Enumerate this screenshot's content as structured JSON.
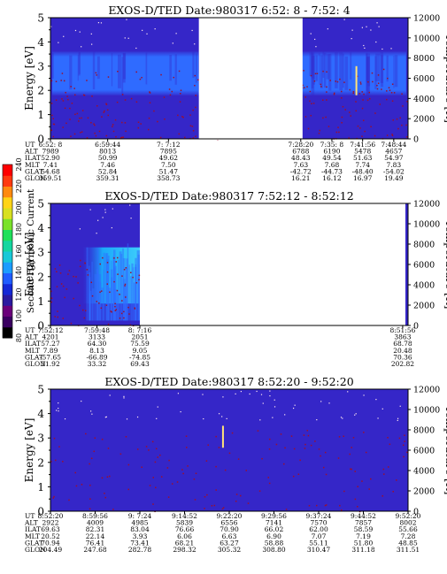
{
  "chart_data": [
    {
      "type": "heatmap",
      "title": "EXOS-D/TED   Date:980317  6:52: 8 - 7:52: 4",
      "ylabel": "Energy [eV]",
      "y2label": "Temperature [K]",
      "ylim": [
        0,
        5
      ],
      "y2lim": [
        0,
        12000
      ],
      "yticks": [
        "0",
        "1",
        "2",
        "3",
        "4",
        "5"
      ],
      "y2ticks": [
        "0",
        "2000",
        "4000",
        "6000",
        "8000",
        "10000",
        "12000"
      ],
      "band_ev": [
        1.8,
        3.6
      ],
      "data_gap": [
        0.415,
        0.705
      ],
      "spike": {
        "x": 0.853,
        "y1": 1.8,
        "y2": 3.0
      },
      "columns": [
        {
          "UT": "6:52: 8",
          "ALT": "7989",
          "ILAT": "52.90",
          "MLT": "7.41",
          "GLAT": "54.68",
          "GLON": "359.51"
        },
        {
          "UT": "6:59:44",
          "ALT": "8013",
          "ILAT": "50.99",
          "MLT": "7.46",
          "GLAT": "52.84",
          "GLON": "359.31"
        },
        {
          "UT": "7: 7:12",
          "ALT": "7895",
          "ILAT": "49.62",
          "MLT": "7.50",
          "GLAT": "51.47",
          "GLON": "358.73"
        },
        {
          "UT": "7:28:20",
          "ALT": "6788",
          "ILAT": "48.43",
          "MLT": "7.63",
          "GLAT": "-42.72",
          "GLON": "16.21"
        },
        {
          "UT": "7:35: 8",
          "ALT": "6190",
          "ILAT": "49.54",
          "MLT": "7.68",
          "GLAT": "-44.73",
          "GLON": "16.12"
        },
        {
          "UT": "7:41:56",
          "ALT": "5478",
          "ILAT": "51.63",
          "MLT": "7.74",
          "GLAT": "-48.40",
          "GLON": "16.97"
        },
        {
          "UT": "7:48:44",
          "ALT": "4657",
          "ILAT": "54.97",
          "MLT": "7.83",
          "GLAT": "-54.02",
          "GLON": "19.49"
        }
      ]
    },
    {
      "type": "heatmap",
      "title": "EXOS-D/TED   Date:980317  7:52:12 - 8:52:12",
      "ylabel": "Energy [eV]",
      "y2label": "Temperature [K]",
      "ylim": [
        0,
        5
      ],
      "y2lim": [
        0,
        12000
      ],
      "yticks": [
        "0",
        "1",
        "2",
        "3",
        "4",
        "5"
      ],
      "y2ticks": [
        "0",
        "2000",
        "4000",
        "6000",
        "8000",
        "10000",
        "12000"
      ],
      "data_end": 0.25,
      "columns": [
        {
          "UT": "7:52:12",
          "ALT": "4201",
          "ILAT": "57.27",
          "MLT": "7.89",
          "GLAT": "-57.65",
          "GLON": "21.92"
        },
        {
          "UT": "7:59:48",
          "ALT": "3133",
          "ILAT": "64.30",
          "MLT": "8.13",
          "GLAT": "-66.89",
          "GLON": "33.32"
        },
        {
          "UT": "8: 7:16",
          "ALT": "2051",
          "ILAT": "75.59",
          "MLT": "9.05",
          "GLAT": "-74.85",
          "GLON": "69.43"
        },
        {
          "UT": "8:51:56",
          "ALT": "3863",
          "ILAT": "68.78",
          "MLT": "20.48",
          "GLAT": "70.36",
          "GLON": "202.82"
        }
      ]
    },
    {
      "type": "heatmap",
      "title": "EXOS-D/TED   Date:980317  8:52:20 - 9:52:20",
      "ylabel": "Energy [eV]",
      "y2label": "Temperature [K]",
      "ylim": [
        0,
        5
      ],
      "y2lim": [
        0,
        12000
      ],
      "yticks": [
        "0",
        "1",
        "2",
        "3",
        "4",
        "5"
      ],
      "y2ticks": [
        "0",
        "2000",
        "4000",
        "6000",
        "8000",
        "10000",
        "12000"
      ],
      "spike": {
        "x": 0.48,
        "y1": 2.6,
        "y2": 3.5
      },
      "columns": [
        {
          "UT": "8:52:20",
          "ALT": "2922",
          "ILAT": "69.63",
          "MLT": "20.52",
          "GLAT": "70.94",
          "GLON": "204.49"
        },
        {
          "UT": "8:59:56",
          "ALT": "4009",
          "ILAT": "82.31",
          "MLT": "22.14",
          "GLAT": "76.41",
          "GLON": "247.68"
        },
        {
          "UT": "9: 7:24",
          "ALT": "4985",
          "ILAT": "83.04",
          "MLT": "3.93",
          "GLAT": "73.41",
          "GLON": "282.78"
        },
        {
          "UT": "9:14:52",
          "ALT": "5839",
          "ILAT": "76.66",
          "MLT": "6.06",
          "GLAT": "68.21",
          "GLON": "298.32"
        },
        {
          "UT": "9:22:20",
          "ALT": "6556",
          "ILAT": "70.90",
          "MLT": "6.63",
          "GLAT": "63.27",
          "GLON": "305.32"
        },
        {
          "UT": "9:29:56",
          "ALT": "7141",
          "ILAT": "66.02",
          "MLT": "6.90",
          "GLAT": "58.88",
          "GLON": "308.80"
        },
        {
          "UT": "9:37:24",
          "ALT": "7570",
          "ILAT": "62.00",
          "MLT": "7.07",
          "GLAT": "55.11",
          "GLON": "310.47"
        },
        {
          "UT": "9:44:52",
          "ALT": "7857",
          "ILAT": "58.59",
          "MLT": "7.19",
          "GLAT": "51.80",
          "GLON": "311.18"
        },
        {
          "UT": "9:52:20",
          "ALT": "8002",
          "ILAT": "55.66",
          "MLT": "7.28",
          "GLAT": "48.85",
          "GLON": "311.51"
        }
      ]
    }
  ],
  "row_labels": [
    "UT",
    "ALT",
    "ILAT",
    "MLT",
    "GLAT",
    "GLON"
  ],
  "colorbar": {
    "label": "Second Harmonic Current",
    "ticks": [
      "80",
      "100",
      "120",
      "140",
      "160",
      "180",
      "200",
      "220",
      "240"
    ],
    "colors": [
      "#000000",
      "#3a0060",
      "#6a007a",
      "#2a1aa0",
      "#1428d6",
      "#1f5cff",
      "#1b9cff",
      "#18c8d8",
      "#14d6a0",
      "#1fe05a",
      "#7ae22a",
      "#d8e020",
      "#ffd418",
      "#ff8a10",
      "#ff3a10",
      "#ff0000"
    ]
  },
  "colors": {
    "background": "#3526c8",
    "band": "#2f6bff",
    "noise": "#9a1030",
    "speck": "#ffe6f0",
    "spike": "#ffe27a"
  }
}
